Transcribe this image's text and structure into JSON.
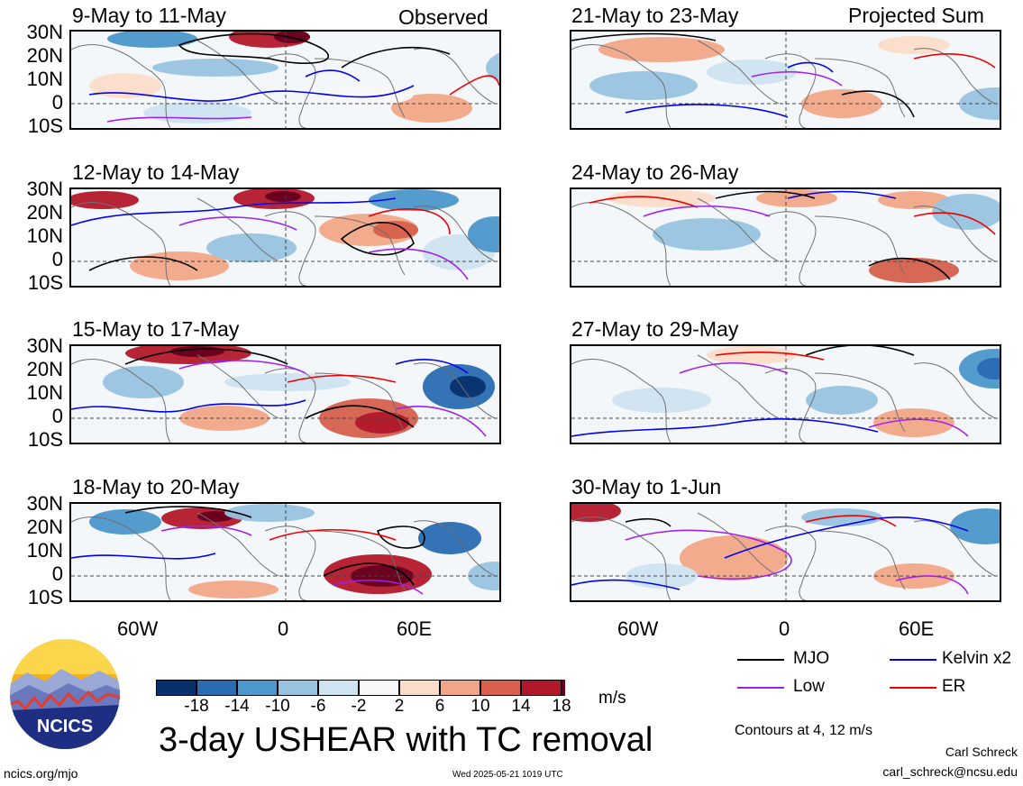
{
  "header": {
    "left_corner": "Observed",
    "right_corner": "Projected Sum"
  },
  "observed_panels": [
    {
      "title": "9-May to 11-May"
    },
    {
      "title": "12-May to 14-May"
    },
    {
      "title": "15-May to 17-May"
    },
    {
      "title": "18-May to 20-May"
    }
  ],
  "projected_panels": [
    {
      "title": "21-May to 23-May"
    },
    {
      "title": "24-May to 26-May"
    },
    {
      "title": "27-May to 29-May"
    },
    {
      "title": "30-May to 1-Jun"
    }
  ],
  "lat_labels": [
    "30N",
    "20N",
    "10N",
    "0",
    "10S"
  ],
  "lon_labels": [
    "60W",
    "0",
    "60E"
  ],
  "colorbar": {
    "colors": [
      "#08306b",
      "#2a6cb3",
      "#4c97cb",
      "#97c3df",
      "#cfe3f0",
      "#f7f7f7",
      "#fbdcc8",
      "#f2a688",
      "#d6604d",
      "#b2182b",
      "#67001f"
    ],
    "ticks": [
      "-18",
      "-14",
      "-10",
      "-6",
      "-2",
      "2",
      "6",
      "10",
      "14",
      "18"
    ],
    "units": "m/s"
  },
  "title": "3-day USHEAR with TC removal",
  "legend": [
    {
      "label": "MJO",
      "color": "#000000"
    },
    {
      "label": "Kelvin x2",
      "color": "#0000ee"
    },
    {
      "label": "Low",
      "color": "#a020f0"
    },
    {
      "label": "ER",
      "color": "#ee0000"
    }
  ],
  "contours_note": "Contours at 4, 12 m/s",
  "credits": {
    "author": "Carl Schreck",
    "email": "carl_schreck@ncsu.edu"
  },
  "footer": {
    "site": "ncics.org/mjo",
    "timestamp": "Wed 2025-05-21 1019 UTC"
  },
  "logo": {
    "text": "NCICS"
  }
}
